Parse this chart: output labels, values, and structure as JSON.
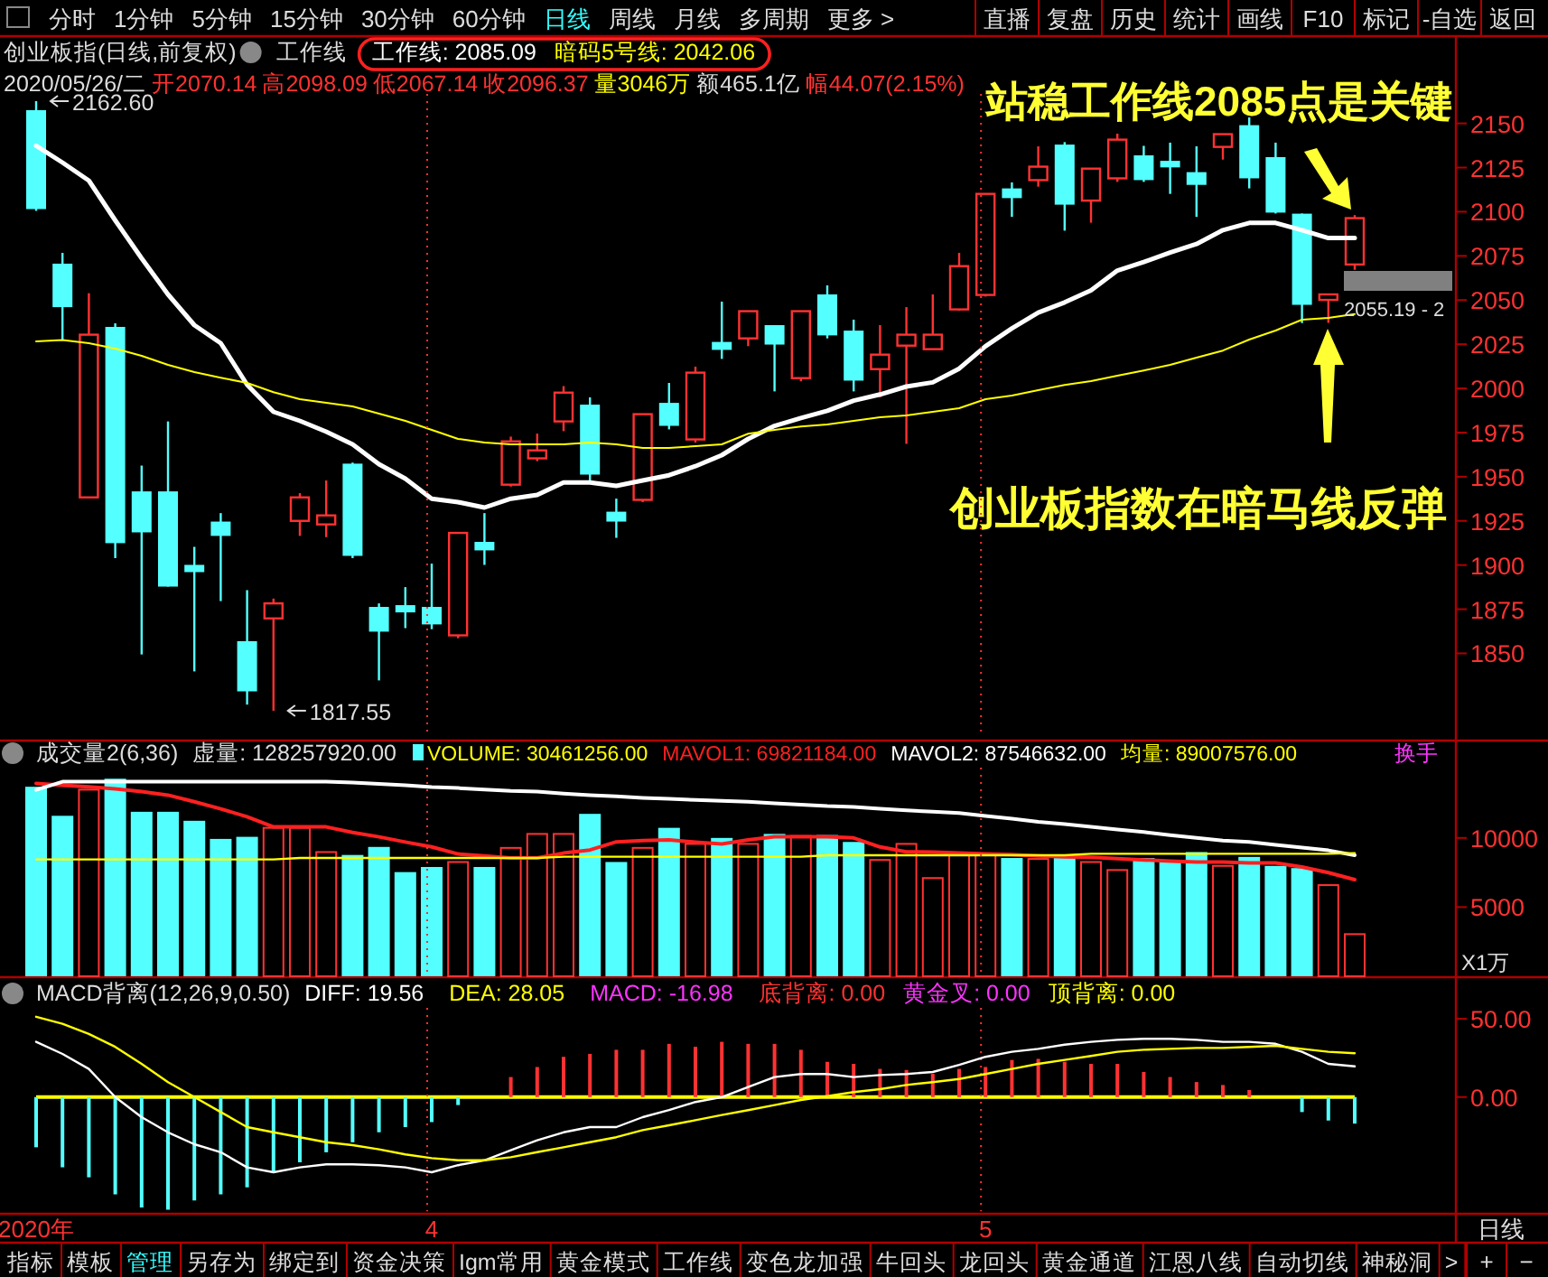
{
  "chart_data": [
    {
      "type": "other",
      "annotations": [
        "分时",
        "1分钟",
        "5分钟",
        "15分钟",
        "30分钟",
        "60分钟",
        "日线",
        "周线",
        "月线",
        "多周期",
        "更多 >",
        "直播",
        "复盘",
        "历史",
        "统计",
        "画线",
        "F10",
        "标记",
        "-自选",
        "返回"
      ]
    },
    {
      "type": "candlestick",
      "title": "创业板指(日线,前复权)",
      "tick_labels": "y",
      "categories": [
        null,
        null,
        null,
        null,
        null,
        null,
        null,
        null,
        null,
        null,
        null,
        null,
        null,
        null,
        null,
        null,
        null,
        null,
        null,
        null,
        null,
        null,
        null,
        null,
        null,
        null,
        null,
        null,
        null,
        null,
        null,
        null,
        null,
        null,
        null,
        null,
        null,
        null,
        null,
        null,
        null,
        null,
        null,
        null,
        null,
        null,
        null,
        null,
        null,
        null,
        null
      ],
      "ohlc": [
        [
          2157.5,
          2162.6,
          2100.5,
          2101.5
        ],
        [
          2070.6,
          2076.7,
          2027.6,
          2046.0
        ],
        [
          1938.3,
          2053.9,
          1938.3,
          2030.4
        ],
        [
          2034.8,
          2036.8,
          1903.9,
          1912.4
        ],
        [
          1941.7,
          1956.3,
          1849.4,
          1918.5
        ],
        [
          1941.7,
          1981.3,
          1887.8,
          1887.8
        ],
        [
          1900.1,
          1910.3,
          1839.8,
          1896.0
        ],
        [
          1924.6,
          1929.4,
          1879.6,
          1916.5
        ],
        [
          1856.9,
          1885.8,
          1821.0,
          1828.5
        ],
        [
          1869.8,
          1881.0,
          1817.55,
          1878.3
        ],
        [
          1925.0,
          1940.7,
          1916.5,
          1938.3
        ],
        [
          1923.0,
          1947.9,
          1915.8,
          1928.1
        ],
        [
          1957.4,
          1958.0,
          1903.9,
          1905.2
        ],
        [
          1876.3,
          1878.3,
          1834.7,
          1862.3
        ],
        [
          1877.3,
          1887.5,
          1864.3,
          1873.2
        ],
        [
          1876.3,
          1900.8,
          1863.7,
          1866.4
        ],
        [
          1860.2,
          1918.2,
          1858.6,
          1918.2
        ],
        [
          1913.1,
          1929.4,
          1900.1,
          1908.3
        ],
        [
          1945.5,
          1972.7,
          1944.4,
          1970.0
        ],
        [
          1960.4,
          1974.4,
          1958.8,
          1964.9
        ],
        [
          1981.3,
          2001.3,
          1975.8,
          1997.6
        ],
        [
          1990.8,
          1994.9,
          1947.1,
          1951.2
        ],
        [
          1930.2,
          1937.6,
          1915.4,
          1924.6
        ],
        [
          1936.9,
          1985.4,
          1935.6,
          1985.4
        ],
        [
          1991.8,
          2003.1,
          1976.8,
          1978.8
        ],
        [
          1971.1,
          2012.3,
          1969.3,
          2008.9
        ],
        [
          2026.3,
          2049.1,
          2016.7,
          2021.8
        ],
        [
          2028.3,
          2043.7,
          2023.9,
          2043.7
        ],
        [
          2035.8,
          2035.8,
          1998.3,
          2024.8
        ],
        [
          2005.8,
          2043.7,
          2004.0,
          2043.7
        ],
        [
          2053.2,
          2058.3,
          2028.3,
          2030.0
        ],
        [
          2032.7,
          2038.9,
          1998.3,
          2004.4
        ],
        [
          2010.9,
          2035.8,
          1994.9,
          2019.1
        ],
        [
          2024.2,
          2046.0,
          1968.6,
          2030.4
        ],
        [
          2022.2,
          2053.2,
          2022.0,
          2030.4
        ],
        [
          2044.7,
          2076.7,
          2044.0,
          2069.2
        ],
        [
          2052.9,
          2110.1,
          2052.0,
          2110.1
        ],
        [
          2113.2,
          2116.6,
          2097.1,
          2107.7
        ],
        [
          2117.9,
          2137.0,
          2114.2,
          2125.5
        ],
        [
          2138.0,
          2139.4,
          2089.3,
          2104.0
        ],
        [
          2106.3,
          2124.4,
          2093.8,
          2124.4
        ],
        [
          2118.9,
          2144.2,
          2116.9,
          2140.8
        ],
        [
          2131.9,
          2137.3,
          2116.9,
          2117.9
        ],
        [
          2128.8,
          2139.1,
          2110.1,
          2125.1
        ],
        [
          2122.4,
          2137.0,
          2097.1,
          2115.2
        ],
        [
          2136.7,
          2143.9,
          2129.5,
          2143.9
        ],
        [
          2149.0,
          2153.4,
          2113.2,
          2118.9
        ],
        [
          2130.9,
          2139.1,
          2099.0,
          2099.5
        ],
        [
          2098.9,
          2099.0,
          2037.0,
          2047.3
        ],
        [
          2050.1,
          2053.2,
          2037.1,
          2053.2
        ],
        [
          2070.14,
          2098.09,
          2067.14,
          2096.37
        ]
      ],
      "colors": [
        "#54ffff",
        "#54ffff",
        "#ff3232",
        "#54ffff",
        "#54ffff",
        "#54ffff",
        "#54ffff",
        "#54ffff",
        "#54ffff",
        "#ff3232",
        "#ff3232",
        "#ff3232",
        "#54ffff",
        "#54ffff",
        "#54ffff",
        "#54ffff",
        "#ff3232",
        "#54ffff",
        "#ff3232",
        "#ff3232",
        "#ff3232",
        "#54ffff",
        "#54ffff",
        "#ff3232",
        "#54ffff",
        "#ff3232",
        "#54ffff",
        "#ff3232",
        "#54ffff",
        "#ff3232",
        "#54ffff",
        "#54ffff",
        "#ff3232",
        "#ff3232",
        "#ff3232",
        "#ff3232",
        "#ff3232",
        "#54ffff",
        "#ff3232",
        "#54ffff",
        "#ff3232",
        "#ff3232",
        "#54ffff",
        "#54ffff",
        "#54ffff",
        "#ff3232",
        "#54ffff",
        "#54ffff",
        "#54ffff",
        "#ff3232",
        "#ff3232"
      ],
      "series": [
        {
          "type": "line",
          "name": "工作线: 2085.09",
          "color": "#ffffff",
          "values": [
            2137.3,
            2127.8,
            2117.6,
            2095.1,
            2073.6,
            2053.2,
            2035.8,
            2025.6,
            2002.1,
            1986.7,
            1981.6,
            1975.5,
            1968.3,
            1957.1,
            1948.9,
            1937.6,
            1935.6,
            1932.5,
            1937.6,
            1939.7,
            1946.8,
            1946.8,
            1944.8,
            1947.9,
            1950.9,
            1956.0,
            1962.2,
            1971.4,
            1978.8,
            1983.3,
            1987.4,
            1993.1,
            1996.6,
            2001.0,
            2003.4,
            2011.2,
            2023.8,
            2034.0,
            2042.9,
            2048.7,
            2055.5,
            2066.7,
            2071.5,
            2076.9,
            2081.7,
            2089.6,
            2093.7,
            2093.7,
            2089.6,
            2085.1,
            2085.09
          ]
        },
        {
          "type": "line",
          "name": "暗码5号线: 2042.06",
          "color": "#ffff00",
          "values": [
            2026.6,
            2027.3,
            2025.6,
            2022.5,
            2018.4,
            2013.3,
            2009.2,
            2006.1,
            2003.1,
            1997.9,
            1993.9,
            1991.8,
            1989.8,
            1985.7,
            1981.6,
            1976.5,
            1971.4,
            1969.4,
            1968.3,
            1968.3,
            1968.3,
            1969.4,
            1968.3,
            1966.3,
            1966.3,
            1967.3,
            1968.3,
            1974.4,
            1976.5,
            1978.5,
            1979.6,
            1981.6,
            1983.7,
            1984.7,
            1986.7,
            1988.8,
            1993.9,
            1995.9,
            1999.0,
            2002.0,
            2004.1,
            2007.2,
            2010.2,
            2013.3,
            2017.4,
            2021.4,
            2027.6,
            2032.7,
            2038.9,
            2039.9,
            2042.06
          ]
        }
      ],
      "ylim": [
        1802.7,
        2199.4
      ],
      "yticks": [
        1850,
        1875,
        1900,
        1925,
        1950,
        1975,
        2000,
        2025,
        2050,
        2075,
        2100,
        2125,
        2150
      ],
      "annotations": [
        "工作线",
        "2020/05/26/二",
        "开2070.14",
        "高2098.09",
        "低2067.14",
        "收2096.37",
        "量3046万",
        "额465.1亿",
        "幅44.07(2.15%)",
        "站稳工作线2085点是关键",
        "创业板指数在暗马线反弹",
        "2162.60",
        "1817.55",
        "2055.19 - 2"
      ]
    },
    {
      "type": "bar",
      "title": "成交量2(6,36)",
      "tick_labels": "y",
      "ylabel": "X1万",
      "categories": [
        null,
        null,
        null,
        null,
        null,
        null,
        null,
        null,
        null,
        null,
        null,
        null,
        null,
        null,
        null,
        null,
        null,
        null,
        null,
        null,
        null,
        null,
        null,
        null,
        null,
        null,
        null,
        null,
        null,
        null,
        null,
        null,
        null,
        null,
        null,
        null,
        null,
        null,
        null,
        null,
        null,
        null,
        null,
        null,
        null,
        null,
        null,
        null,
        null,
        null,
        null
      ],
      "series": [
        {
          "name": "VOLUME: 30461256.00",
          "values": [
            13700,
            11600,
            13490,
            14280,
            11890,
            11890,
            11240,
            9930,
            10080,
            10730,
            10730,
            8980,
            8770,
            9350,
            7530,
            7900,
            8260,
            7900,
            9280,
            10290,
            10290,
            11740,
            8260,
            9280,
            10730,
            9570,
            10000,
            9570,
            10290,
            10140,
            10210,
            9710,
            8410,
            9570,
            7100,
            8840,
            8840,
            8550,
            8480,
            8550,
            8260,
            7680,
            8550,
            8260,
            8980,
            7980,
            8630,
            7980,
            7820,
            6590,
            3046
          ],
          "colors": [
            "#54ffff",
            "#54ffff",
            "#ff3232",
            "#54ffff",
            "#54ffff",
            "#54ffff",
            "#54ffff",
            "#54ffff",
            "#54ffff",
            "#ff3232",
            "#ff3232",
            "#ff3232",
            "#54ffff",
            "#54ffff",
            "#54ffff",
            "#54ffff",
            "#ff3232",
            "#54ffff",
            "#ff3232",
            "#ff3232",
            "#ff3232",
            "#54ffff",
            "#54ffff",
            "#ff3232",
            "#54ffff",
            "#ff3232",
            "#54ffff",
            "#ff3232",
            "#54ffff",
            "#ff3232",
            "#54ffff",
            "#54ffff",
            "#ff3232",
            "#ff3232",
            "#ff3232",
            "#ff3232",
            "#ff3232",
            "#54ffff",
            "#ff3232",
            "#54ffff",
            "#ff3232",
            "#ff3232",
            "#54ffff",
            "#54ffff",
            "#54ffff",
            "#ff3232",
            "#54ffff",
            "#54ffff",
            "#54ffff",
            "#ff3232",
            "#ff3232"
          ]
        },
        {
          "type": "line",
          "name": "MAVOL1: 69821184.00",
          "color": "#ff2020",
          "values": [
            13950,
            13800,
            13700,
            13550,
            13340,
            13100,
            12610,
            12100,
            11530,
            10800,
            10800,
            10800,
            10400,
            10080,
            9700,
            9350,
            8840,
            8700,
            8550,
            8550,
            8900,
            9130,
            9710,
            9800,
            9860,
            9700,
            9570,
            9860,
            10080,
            10080,
            10080,
            10000,
            9350,
            9000,
            8980,
            8900,
            8850,
            8800,
            8700,
            8630,
            8600,
            8500,
            8410,
            8330,
            8260,
            8260,
            8190,
            8190,
            7900,
            7500,
            6982.1
          ]
        },
        {
          "type": "line",
          "name": "MAVOL2: 87546632.00",
          "color": "#ffffff",
          "values": [
            13480,
            14060,
            14060,
            14060,
            14060,
            14060,
            14060,
            14060,
            14060,
            14060,
            14060,
            14060,
            14000,
            13900,
            13800,
            13670,
            13600,
            13500,
            13400,
            13340,
            13200,
            13100,
            13000,
            12900,
            12830,
            12750,
            12680,
            12610,
            12500,
            12400,
            12300,
            12250,
            12100,
            12000,
            11890,
            11800,
            11600,
            11400,
            11160,
            11000,
            10800,
            10600,
            10430,
            10200,
            10000,
            9800,
            9710,
            9500,
            9300,
            9100,
            8754.7
          ]
        },
        {
          "type": "line",
          "name": "均量: 89007576.00",
          "color": "#ffff00",
          "values": [
            8450,
            8450,
            8450,
            8450,
            8450,
            8450,
            8450,
            8450,
            8450,
            8450,
            8550,
            8550,
            8550,
            8550,
            8550,
            8550,
            8550,
            8550,
            8550,
            8550,
            8650,
            8650,
            8650,
            8650,
            8650,
            8650,
            8650,
            8650,
            8650,
            8650,
            8750,
            8750,
            8750,
            8750,
            8750,
            8750,
            8750,
            8750,
            8750,
            8750,
            8850,
            8850,
            8850,
            8850,
            8850,
            8850,
            8850,
            8850,
            8850,
            8850,
            8900.8
          ]
        }
      ],
      "ylim": [
        0,
        17040
      ],
      "yticks": [
        5000,
        10000
      ],
      "annotations": [
        "虚量: 128257920.00",
        "换手"
      ]
    },
    {
      "type": "bar",
      "title": "MACD背离(12,26,9,0.50)",
      "categories": [
        "2020年",
        null,
        null,
        null,
        null,
        null,
        null,
        null,
        null,
        null,
        null,
        null,
        null,
        null,
        null,
        "4",
        null,
        null,
        null,
        null,
        null,
        null,
        null,
        null,
        null,
        null,
        null,
        null,
        null,
        null,
        null,
        null,
        null,
        null,
        null,
        null,
        "5",
        null,
        null,
        null,
        null,
        null,
        null,
        null,
        null,
        null,
        null,
        null,
        null,
        null,
        null
      ],
      "series": [
        {
          "type": "line",
          "name": "DIFF: 19.56",
          "color": "#ffffff",
          "values": [
            35.3,
            27.6,
            18.0,
            0,
            -12.8,
            -22.5,
            -30.2,
            -35.3,
            -44.9,
            -48.1,
            -44.9,
            -43.0,
            -43.0,
            -43.6,
            -44.9,
            -48.1,
            -43.6,
            -40.4,
            -34.0,
            -27.6,
            -22.5,
            -19.2,
            -19.2,
            -12.8,
            -8.3,
            -3.2,
            0,
            6.4,
            12.8,
            14.8,
            14.8,
            12.8,
            14.1,
            14.8,
            16.0,
            20.5,
            25.7,
            28.9,
            30.8,
            33.4,
            35.3,
            36.6,
            37.2,
            37.2,
            36.6,
            35.3,
            35.3,
            34.0,
            28.9,
            21.2,
            19.56
          ]
        },
        {
          "type": "line",
          "name": "DEA: 28.05",
          "color": "#ffff00",
          "values": [
            51.3,
            46.8,
            40.4,
            32.1,
            21.2,
            9.6,
            0,
            -9.6,
            -19.2,
            -22.5,
            -25.7,
            -28.9,
            -30.8,
            -33.4,
            -36.6,
            -39.1,
            -40.4,
            -40.4,
            -38.5,
            -35.3,
            -32.1,
            -28.9,
            -25.7,
            -21.2,
            -18.0,
            -14.8,
            -11.5,
            -8.3,
            -5.1,
            -1.9,
            0.6,
            3.2,
            5.1,
            7.7,
            9.6,
            11.5,
            14.8,
            18.0,
            21.2,
            23.7,
            26.3,
            28.9,
            30.2,
            30.8,
            31.4,
            31.4,
            32.1,
            32.7,
            30.8,
            28.9,
            28.05
          ]
        },
        {
          "name": "MACD: -16.98",
          "values": [
            -32.1,
            -44.9,
            -51.3,
            -62.2,
            -70.6,
            -72.0,
            -66.1,
            -62.2,
            -57.7,
            -48.1,
            -41.7,
            -35.3,
            -28.9,
            -22.5,
            -19.2,
            -16.0,
            -5.1,
            0,
            12.8,
            19.2,
            25.7,
            27.6,
            30.2,
            30.2,
            34.0,
            32.1,
            35.3,
            34.0,
            34.0,
            30.2,
            22.5,
            21.2,
            18.0,
            17.3,
            14.8,
            18.0,
            19.2,
            23.7,
            24.4,
            22.5,
            21.2,
            21.2,
            16.0,
            12.8,
            9.6,
            7.7,
            4.5,
            0,
            -9.6,
            -15.0,
            -16.98
          ],
          "colors": [
            "#54ffff",
            "#54ffff",
            "#54ffff",
            "#54ffff",
            "#54ffff",
            "#54ffff",
            "#54ffff",
            "#54ffff",
            "#54ffff",
            "#54ffff",
            "#54ffff",
            "#54ffff",
            "#54ffff",
            "#54ffff",
            "#54ffff",
            "#54ffff",
            "#54ffff",
            "#54ffff",
            "#ff3232",
            "#ff3232",
            "#ff3232",
            "#ff3232",
            "#ff3232",
            "#ff3232",
            "#ff3232",
            "#ff3232",
            "#ff3232",
            "#ff3232",
            "#ff3232",
            "#ff3232",
            "#ff3232",
            "#ff3232",
            "#ff3232",
            "#ff3232",
            "#ff3232",
            "#ff3232",
            "#ff3232",
            "#ff3232",
            "#ff3232",
            "#ff3232",
            "#ff3232",
            "#ff3232",
            "#ff3232",
            "#ff3232",
            "#ff3232",
            "#ff3232",
            "#ff3232",
            "#54ffff",
            "#54ffff",
            "#54ffff",
            "#54ffff"
          ]
        }
      ],
      "ylim": [
        -73,
        57
      ],
      "yticks": [
        {
          "value": 50,
          "label": "50.00"
        },
        {
          "value": 0,
          "label": "0.00"
        }
      ],
      "ref_lines": [
        {
          "axis": "y",
          "value": 0,
          "color": "#ffff00",
          "line_style": "solid"
        },
        {
          "axis": "x",
          "value": "4",
          "color": "#ff3232",
          "line_style": "dotted"
        },
        {
          "axis": "x",
          "value": "5",
          "color": "#ff3232",
          "line_style": "dotted"
        }
      ],
      "annotations": [
        "底背离: 0.00",
        "黄金叉: 0.00",
        "顶背离: 0.00",
        "日线"
      ]
    },
    {
      "type": "other",
      "annotations": [
        "指标",
        "模板",
        "管理",
        "另存为",
        "绑定到",
        "资金决策",
        "Igm常用",
        "黄金模式",
        "工作线",
        "变色龙加强",
        "牛回头",
        "龙回头",
        "黄金通道",
        "江恩八线",
        "自动切线",
        "神秘洞",
        ">",
        "+",
        "−"
      ]
    }
  ]
}
